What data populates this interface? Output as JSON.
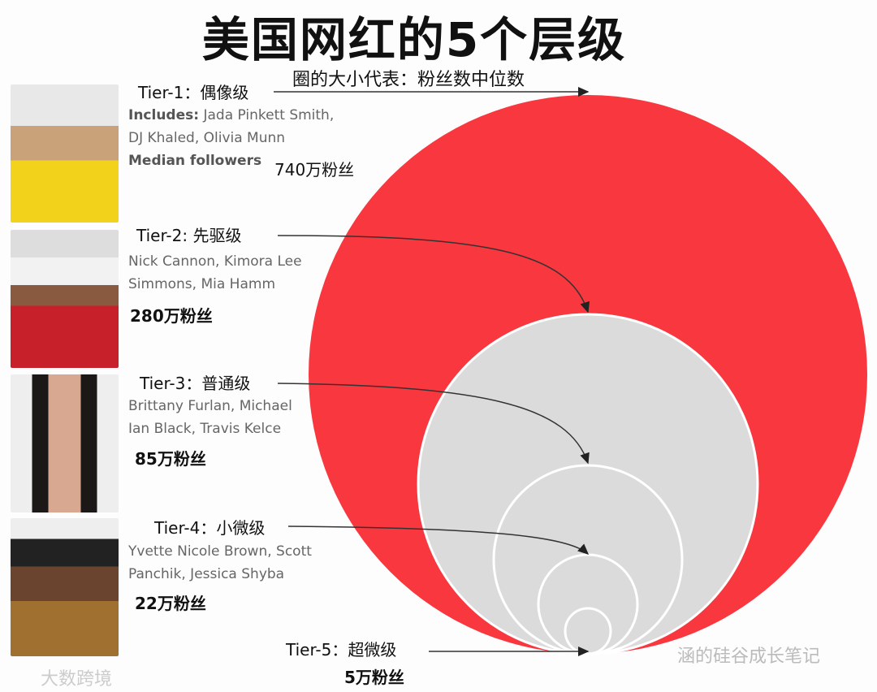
{
  "title": "美国网红的5个层级",
  "subtitle": "圈的大小代表：粉丝数中位数",
  "colors": {
    "tier1": "#f8373f",
    "inner": "#dcdbdc",
    "stroke": "#ffffff",
    "arrow": "#333333"
  },
  "tiers": [
    {
      "label": "Tier-1：偶像级",
      "includes_label": "Includes:",
      "names_line1": "Jada Pinkett Smith,",
      "names_line2": "DJ Khaled, Olivia Munn",
      "median_label": "Median followers",
      "fans": "740万粉丝"
    },
    {
      "label": "Tier-2: 先驱级",
      "names_line1": "Nick Cannon, Kimora Lee",
      "names_line2": "Simmons, Mia Hamm",
      "fans": "280万粉丝"
    },
    {
      "label": "Tier-3：普通级",
      "names_line1": "Brittany Furlan, Michael",
      "names_line2": "Ian Black, Travis Kelce",
      "fans": "85万粉丝"
    },
    {
      "label": "Tier-4：小微级",
      "names_line1": "Yvette Nicole Brown, Scott",
      "names_line2": "Panchik, Jessica Shyba",
      "fans": "22万粉丝"
    },
    {
      "label": "Tier-5：超微级",
      "fans": "5万粉丝"
    }
  ],
  "watermarks": {
    "left": "大数跨境",
    "right": "涵的硅谷成长笔记"
  }
}
